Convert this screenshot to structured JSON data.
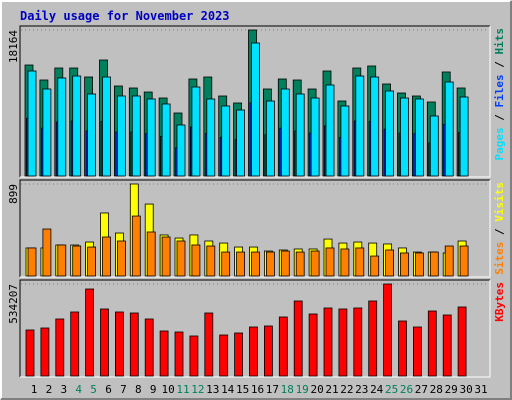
{
  "chart_data": [
    {
      "type": "bar",
      "title": "Daily usage for November 2023",
      "ylim": [
        0,
        18164
      ],
      "yticks": [
        18164
      ],
      "legend_separator": " / ",
      "series": [
        {
          "name": "Hits",
          "color": "#00805c",
          "values": [
            13809,
            11943,
            13436,
            13436,
            12316,
            14431,
            11197,
            10948,
            10450,
            9704,
            7838,
            12068,
            12316,
            9953,
            9082,
            18164,
            10824,
            12068,
            11943,
            10824,
            13063,
            9331,
            13436,
            13685,
            11446,
            10326,
            9953,
            9206,
            12939,
            10948,
            null
          ]
        },
        {
          "name": "Files",
          "color": "#0040ff",
          "values": [
            7180,
            5950,
            6700,
            6840,
            5610,
            6770,
            5470,
            5470,
            5270,
            4930,
            3490,
            6090,
            5270,
            4790,
            4520,
            9100,
            5130,
            5950,
            5610,
            5340,
            6230,
            4790,
            6840,
            6770,
            5820,
            5340,
            5270,
            4110,
            6430,
            5410,
            null
          ]
        },
        {
          "name": "Pages",
          "color": "#00e0ff",
          "values": [
            13063,
            10824,
            12192,
            12441,
            10201,
            12316,
            9953,
            9953,
            9579,
            8957,
            6345,
            11072,
            9579,
            8709,
            8211,
            16546,
            9331,
            10824,
            10201,
            9704,
            11321,
            8709,
            12441,
            12316,
            10575,
            9704,
            9579,
            7465,
            11694,
            9828,
            null
          ]
        }
      ]
    },
    {
      "type": "bar",
      "ylim": [
        0,
        899
      ],
      "yticks": [
        899
      ],
      "legend_separator": " / ",
      "series": [
        {
          "name": "Visits",
          "color": "#ffff00",
          "values": [
            274,
            274,
            303,
            303,
            332,
            616,
            420,
            899,
            703,
            401,
            371,
            401,
            342,
            322,
            283,
            283,
            244,
            254,
            264,
            264,
            361,
            322,
            332,
            322,
            313,
            274,
            234,
            234,
            225,
            342,
            null
          ]
        },
        {
          "name": "Sites",
          "color": "#ff8000",
          "values": [
            274,
            459,
            303,
            293,
            283,
            381,
            342,
            586,
            430,
            381,
            342,
            303,
            293,
            234,
            234,
            234,
            234,
            244,
            234,
            244,
            274,
            264,
            274,
            195,
            254,
            225,
            225,
            234,
            293,
            293,
            null
          ]
        }
      ]
    },
    {
      "type": "bar",
      "ylim": [
        0,
        534207
      ],
      "yticks": [
        534207
      ],
      "categories": [
        "1",
        "2",
        "3",
        "4",
        "5",
        "6",
        "7",
        "8",
        "9",
        "10",
        "11",
        "12",
        "13",
        "14",
        "15",
        "16",
        "17",
        "18",
        "19",
        "20",
        "21",
        "22",
        "23",
        "24",
        "25",
        "26",
        "27",
        "28",
        "29",
        "30",
        "31"
      ],
      "weekend_indices": [
        3,
        4,
        10,
        11,
        17,
        18,
        24,
        25
      ],
      "weekend_color": "#00805c",
      "series": [
        {
          "name": "KBytes",
          "color": "#ff0000",
          "values": [
            267122,
            278736,
            330999,
            371648,
            505209,
            389069,
            371648,
            365841,
            330999,
            261315,
            255508,
            232280,
            365841,
            238087,
            249701,
            284543,
            290350,
            342613,
            435525,
            360034,
            394876,
            389069,
            394876,
            435525,
            534207,
            319385,
            284543,
            377455,
            354227,
            400683,
            null
          ]
        }
      ]
    }
  ]
}
